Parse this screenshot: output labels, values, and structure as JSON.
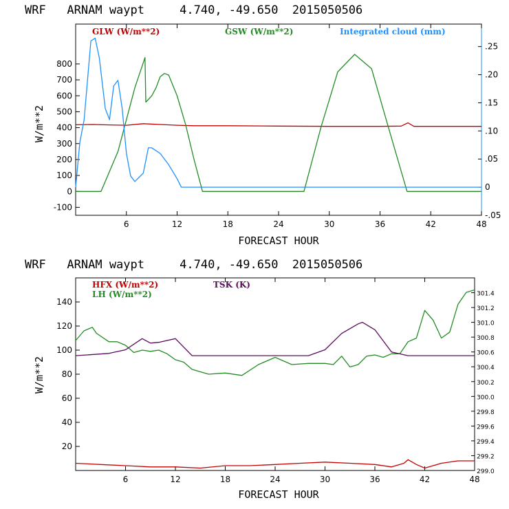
{
  "chart_data": [
    {
      "type": "line",
      "title": "WRF   ARNAM waypt     4.740, -49.650  2015050506",
      "xlabel": "FORECAST HOUR",
      "ylabel": "W/m**2",
      "xlim": [
        0,
        48
      ],
      "ylim": [
        -150,
        1050
      ],
      "y2lim": [
        -0.05,
        0.29
      ],
      "xticks": [
        6,
        12,
        18,
        24,
        30,
        36,
        42,
        48
      ],
      "yticks": [
        -100,
        0,
        100,
        200,
        300,
        400,
        500,
        600,
        700,
        800
      ],
      "y2ticks": [
        {
          "v": -0.05,
          "label": "-.05"
        },
        {
          "v": 0,
          "label": "0"
        },
        {
          "v": 0.05,
          "label": ".05"
        },
        {
          "v": 0.1,
          "label": ".10"
        },
        {
          "v": 0.15,
          "label": ".15"
        },
        {
          "v": 0.2,
          "label": ".20"
        },
        {
          "v": 0.25,
          "label": ".25"
        }
      ],
      "series": [
        {
          "name": "GLW (W/m**2)",
          "color": "#c00000",
          "axis": "left",
          "x": [
            0,
            2,
            4,
            6,
            8,
            10,
            12,
            14,
            18,
            24,
            30,
            36,
            38.5,
            39.3,
            40,
            48
          ],
          "y": [
            418,
            420,
            417,
            415,
            425,
            420,
            415,
            412,
            412,
            410,
            408,
            408,
            410,
            430,
            408,
            408
          ]
        },
        {
          "name": "GSW (W/m**2)",
          "color": "#228b22",
          "axis": "left",
          "x": [
            0,
            3,
            5,
            7,
            8.2,
            8.3,
            9,
            9.5,
            10,
            10.5,
            11,
            12,
            13,
            14,
            15,
            16,
            27,
            29,
            31,
            33,
            35,
            37,
            39.2,
            48
          ],
          "y": [
            0,
            0,
            250,
            650,
            840,
            560,
            600,
            650,
            720,
            740,
            730,
            600,
            420,
            200,
            0,
            0,
            0,
            400,
            750,
            860,
            770,
            400,
            0,
            0
          ]
        },
        {
          "name": "Integrated cloud (mm)",
          "color": "#1e90ff",
          "axis": "right",
          "x": [
            0,
            0.5,
            1,
            1.8,
            2.3,
            2.8,
            3.5,
            4,
            4.5,
            5,
            5.5,
            6,
            6.5,
            7,
            8,
            8.6,
            9,
            10,
            11,
            12,
            12.5,
            13,
            48
          ],
          "y": [
            0,
            0.08,
            0.12,
            0.26,
            0.265,
            0.23,
            0.14,
            0.12,
            0.18,
            0.19,
            0.14,
            0.06,
            0.02,
            0.01,
            0.025,
            0.07,
            0.07,
            0.06,
            0.04,
            0.015,
            0,
            0,
            0
          ]
        }
      ]
    },
    {
      "type": "line",
      "title": "WRF   ARNAM waypt     4.740, -49.650  2015050506",
      "xlabel": "FORECAST HOUR",
      "ylabel": "W/m**2",
      "xlim": [
        0,
        48
      ],
      "ylim": [
        0,
        160
      ],
      "y2lim": [
        299.0,
        301.6
      ],
      "xticks": [
        6,
        12,
        18,
        24,
        30,
        36,
        42,
        48
      ],
      "yticks": [
        20,
        40,
        60,
        80,
        100,
        120,
        140
      ],
      "y2ticks": [
        {
          "v": 299.0,
          "label": "299.0"
        },
        {
          "v": 299.2,
          "label": "299.2"
        },
        {
          "v": 299.4,
          "label": "299.4"
        },
        {
          "v": 299.6,
          "label": "299.6"
        },
        {
          "v": 299.8,
          "label": "299.8"
        },
        {
          "v": 300.0,
          "label": "300.0"
        },
        {
          "v": 300.2,
          "label": "300.2"
        },
        {
          "v": 300.4,
          "label": "300.4"
        },
        {
          "v": 300.6,
          "label": "300.6"
        },
        {
          "v": 300.8,
          "label": "300.8"
        },
        {
          "v": 301.0,
          "label": "301.0"
        },
        {
          "v": 301.2,
          "label": "301.2"
        },
        {
          "v": 301.4,
          "label": "301.4"
        }
      ],
      "series": [
        {
          "name": "HFX (W/m**2)",
          "color": "#c00000",
          "axis": "left",
          "x": [
            0,
            3,
            6,
            9,
            12,
            15,
            18,
            21,
            24,
            27,
            30,
            33,
            36,
            38,
            39.5,
            40,
            41,
            42,
            44,
            46,
            48
          ],
          "y": [
            6,
            5,
            4,
            3,
            3,
            2,
            4,
            4,
            5,
            6,
            7,
            6,
            5,
            3,
            6,
            9,
            5,
            2,
            6,
            8,
            8
          ]
        },
        {
          "name": "LH (W/m**2)",
          "color": "#228b22",
          "axis": "left",
          "x": [
            0,
            1,
            2,
            2.5,
            4,
            5,
            6,
            7,
            8,
            9,
            10,
            11,
            12,
            13,
            14,
            16,
            18,
            20,
            22,
            24,
            26,
            28,
            30,
            31,
            32,
            33,
            34,
            35,
            36,
            37,
            38,
            39,
            40,
            41,
            42,
            43,
            44,
            45,
            46,
            47,
            48
          ],
          "y": [
            108,
            116,
            119,
            114,
            107,
            107,
            104,
            98,
            100,
            99,
            100,
            97,
            92,
            90,
            84,
            80,
            81,
            79,
            88,
            94,
            88,
            89,
            89,
            88,
            95,
            86,
            88,
            95,
            96,
            94,
            97,
            97,
            107,
            110,
            133,
            125,
            110,
            115,
            138,
            148,
            150
          ]
        },
        {
          "name": "TSK (K)",
          "color": "#5a0a5a",
          "axis": "right",
          "x": [
            0,
            4,
            6,
            8,
            9,
            10,
            12,
            14,
            18,
            24,
            28,
            30,
            32,
            34,
            34.5,
            36,
            37,
            38,
            40,
            44,
            48
          ],
          "y": [
            300.55,
            300.58,
            300.63,
            300.78,
            300.72,
            300.73,
            300.78,
            300.55,
            300.55,
            300.55,
            300.55,
            300.63,
            300.85,
            300.98,
            301.0,
            300.9,
            300.75,
            300.6,
            300.55,
            300.55,
            300.55
          ]
        }
      ]
    }
  ]
}
